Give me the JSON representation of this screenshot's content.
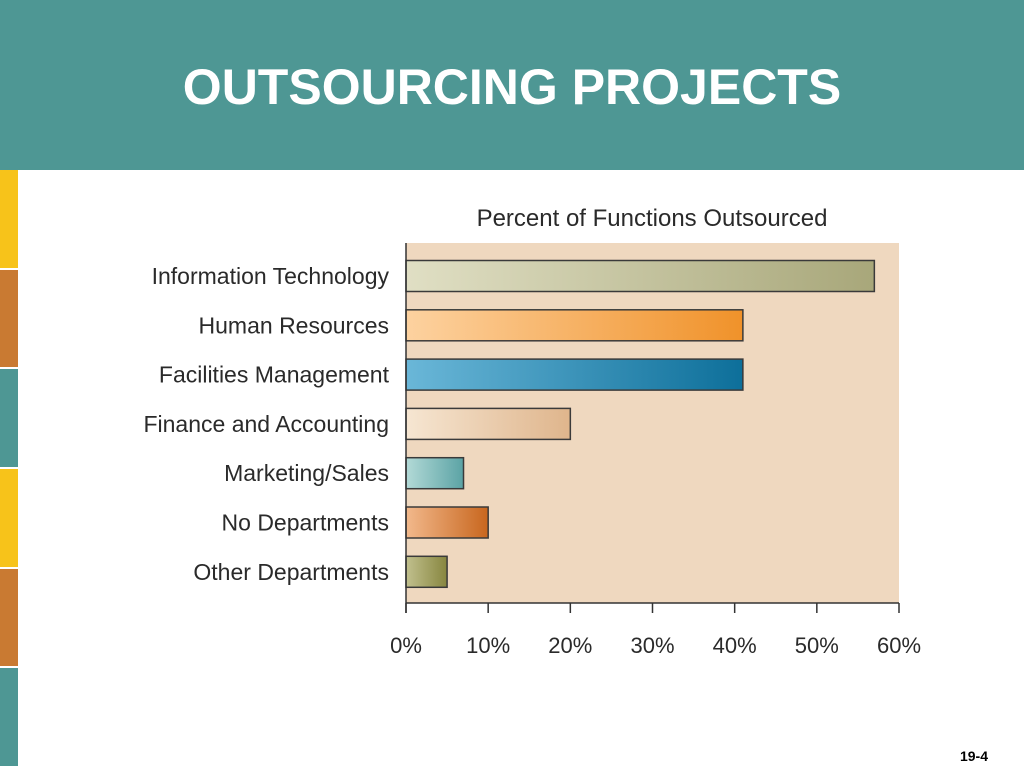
{
  "slide": {
    "title": "OUTSOURCING PROJECTS",
    "page_number": "19-4"
  },
  "colors": {
    "header": "#4e9794",
    "plot_background": "#efd8bf",
    "strip": [
      "#f7c31a",
      "#c97a32",
      "#4e9794",
      "#f7c31a",
      "#c97a32",
      "#4e9794"
    ]
  },
  "chart_data": {
    "type": "bar",
    "orientation": "horizontal",
    "title": "Percent of Functions Outsourced",
    "xlabel": "",
    "ylabel": "",
    "categories": [
      "Information Technology",
      "Human Resources",
      "Facilities Management",
      "Finance and Accounting",
      "Marketing/Sales",
      "No Departments",
      "Other Departments"
    ],
    "values": [
      57,
      41,
      41,
      20,
      7,
      10,
      5
    ],
    "bar_colors": [
      [
        "#e0dfc4",
        "#a8a77a"
      ],
      [
        "#fdd2a0",
        "#f0922a"
      ],
      [
        "#6ab7d8",
        "#0d6f9a"
      ],
      [
        "#f6e6d2",
        "#dfb58c"
      ],
      [
        "#b3dad7",
        "#5ba3a5"
      ],
      [
        "#f2b98c",
        "#c8661e"
      ],
      [
        "#c1c08e",
        "#87863f"
      ]
    ],
    "xlim": [
      0,
      60
    ],
    "ticks": [
      0,
      10,
      20,
      30,
      40,
      50,
      60
    ],
    "tick_labels": [
      "0%",
      "10%",
      "20%",
      "30%",
      "40%",
      "50%",
      "60%"
    ],
    "grid": false,
    "legend": "none"
  }
}
